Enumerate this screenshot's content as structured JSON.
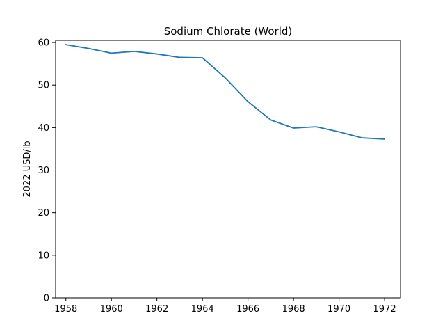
{
  "chart_data": {
    "type": "line",
    "title": "Sodium Chlorate (World)",
    "xlabel": "",
    "ylabel": "2022 USD/lb",
    "xlim": [
      1957.55,
      1972.7
    ],
    "ylim": [
      0,
      60.5
    ],
    "xticks": [
      1958,
      1960,
      1962,
      1964,
      1966,
      1968,
      1970,
      1972
    ],
    "yticks": [
      0,
      10,
      20,
      30,
      40,
      50,
      60
    ],
    "grid": false,
    "series": [
      {
        "x": [
          1958,
          1959,
          1960,
          1961,
          1962,
          1963,
          1964,
          1965,
          1966,
          1967,
          1968,
          1969,
          1970,
          1971,
          1972
        ],
        "y": [
          59.5,
          58.6,
          57.5,
          57.9,
          57.3,
          56.5,
          56.4,
          51.7,
          46.1,
          41.8,
          39.9,
          40.2,
          39.0,
          37.6,
          37.3
        ],
        "color": "#1f77b4"
      }
    ]
  }
}
